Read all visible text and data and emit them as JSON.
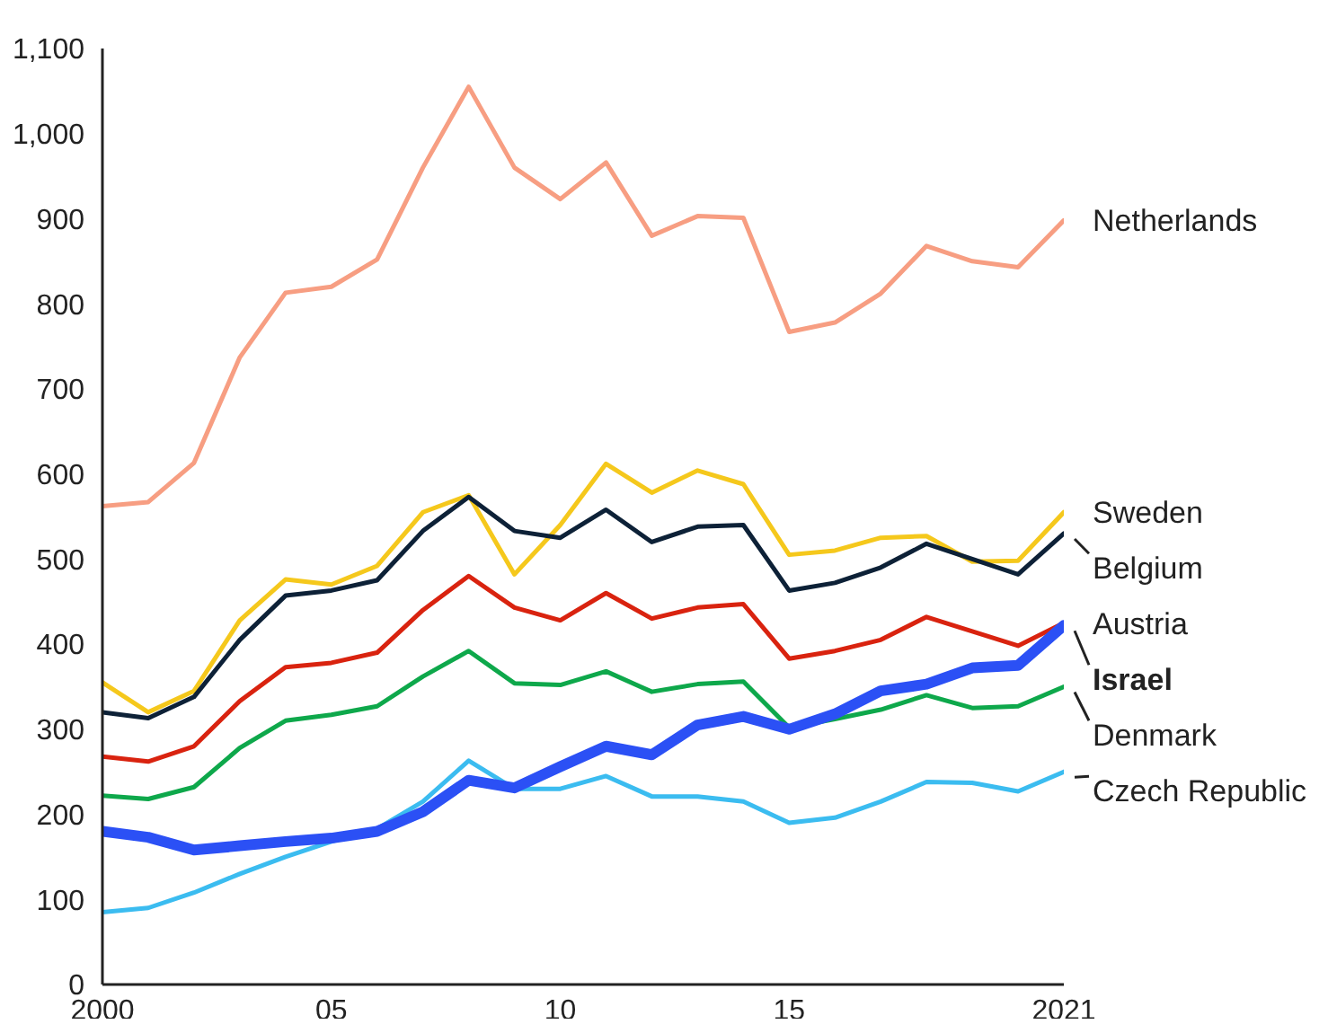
{
  "chart_data": {
    "type": "line",
    "x": [
      2000,
      2001,
      2002,
      2003,
      2004,
      2005,
      2006,
      2007,
      2008,
      2009,
      2010,
      2011,
      2012,
      2013,
      2014,
      2015,
      2016,
      2017,
      2018,
      2019,
      2020,
      2021
    ],
    "xlim": [
      2000,
      2021
    ],
    "xticks": [
      2000,
      {
        "value": 2005,
        "label": "05"
      },
      {
        "value": 2010,
        "label": "10"
      },
      {
        "value": 2015,
        "label": "15"
      },
      2021
    ],
    "ylim": [
      0,
      1100
    ],
    "yticks": [
      0,
      100,
      200,
      300,
      400,
      500,
      600,
      700,
      800,
      900,
      {
        "value": 1000,
        "label": "1,000"
      },
      {
        "value": 1100,
        "label": "1,100"
      }
    ],
    "grid": false,
    "legend": false,
    "marker": "none",
    "line_style": "solid",
    "series": [
      {
        "name": "Netherlands",
        "color": "#f79e82",
        "values": [
          562,
          567,
          613,
          737,
          813,
          820,
          852,
          960,
          1055,
          960,
          923,
          966,
          880,
          903,
          901,
          767,
          778,
          812,
          868,
          850,
          843,
          898
        ]
      },
      {
        "name": "Sweden",
        "color": "#f5c81c",
        "values": [
          355,
          320,
          345,
          428,
          476,
          470,
          492,
          555,
          575,
          482,
          540,
          612,
          578,
          604,
          588,
          505,
          510,
          525,
          527,
          497,
          498,
          555
        ]
      },
      {
        "name": "Belgium",
        "color": "#0d2137",
        "values": [
          320,
          313,
          338,
          405,
          457,
          463,
          475,
          533,
          573,
          533,
          525,
          558,
          520,
          538,
          540,
          463,
          472,
          490,
          518,
          500,
          482,
          530
        ]
      },
      {
        "name": "Austria",
        "color": "#d9230f",
        "values": [
          268,
          262,
          280,
          333,
          373,
          378,
          390,
          440,
          480,
          443,
          428,
          460,
          430,
          443,
          447,
          383,
          392,
          405,
          432,
          415,
          398,
          425
        ]
      },
      {
        "name": "Denmark",
        "color": "#0ea84b",
        "values": [
          222,
          218,
          232,
          278,
          310,
          317,
          327,
          362,
          392,
          354,
          352,
          368,
          344,
          353,
          356,
          302,
          312,
          323,
          340,
          325,
          327,
          350
        ]
      },
      {
        "name": "Czech Republic",
        "color": "#3bbcf0",
        "values": [
          85,
          90,
          108,
          130,
          150,
          168,
          183,
          215,
          263,
          230,
          230,
          245,
          221,
          221,
          215,
          190,
          196,
          215,
          238,
          237,
          227,
          250
        ]
      },
      {
        "name": "Israel",
        "color": "#2b50f5",
        "values": [
          180,
          173,
          158,
          163,
          168,
          172,
          180,
          203,
          240,
          231,
          256,
          280,
          270,
          305,
          315,
          300,
          318,
          345,
          353,
          372,
          375,
          422
        ]
      }
    ]
  }
}
